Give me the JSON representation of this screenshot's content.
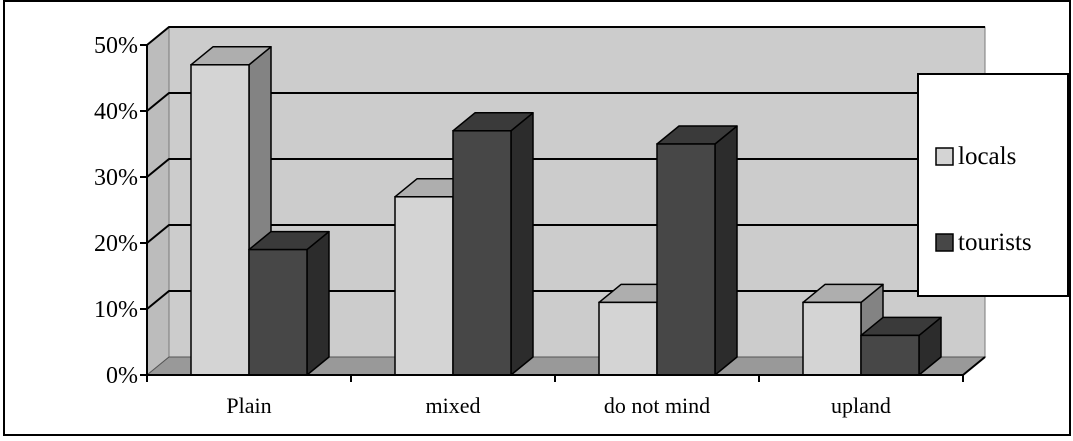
{
  "chart_data": {
    "type": "bar",
    "title": "",
    "xlabel": "",
    "ylabel": "",
    "categories": [
      "Plain",
      "mixed",
      "do not mind",
      "upland"
    ],
    "series": [
      {
        "name": "locals",
        "values": [
          47,
          27,
          11,
          11
        ],
        "color": "#d4d4d4"
      },
      {
        "name": "tourists",
        "values": [
          19,
          37,
          35,
          6
        ],
        "color": "#474747"
      }
    ],
    "ylim": [
      0,
      50
    ],
    "yticks": [
      "0%",
      "10%",
      "20%",
      "30%",
      "40%",
      "50%"
    ],
    "grid": true,
    "legend_position": "right",
    "style": "3d-column",
    "colors": {
      "wall": "#cccccc",
      "floor": "#999999",
      "gridline": "#000000"
    }
  }
}
